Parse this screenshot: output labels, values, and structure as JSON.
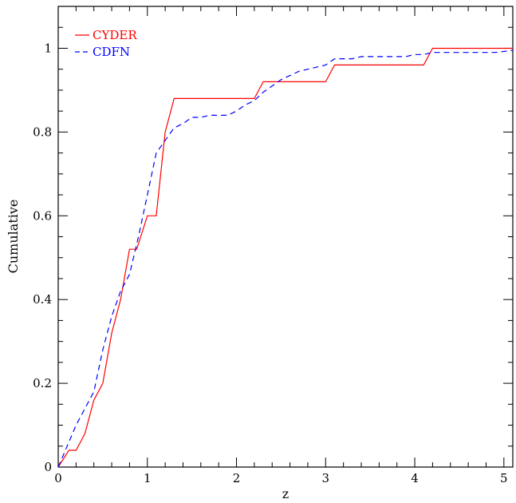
{
  "chart_data": {
    "type": "line",
    "title": "",
    "xlabel": "z",
    "ylabel": "Cumulative",
    "xlim": [
      0,
      5.1
    ],
    "ylim": [
      0,
      1.1
    ],
    "xticks": [
      0,
      1,
      2,
      3,
      4,
      5
    ],
    "yticks": [
      0,
      0.2,
      0.4,
      0.6,
      0.8,
      1
    ],
    "xtick_labels": [
      "0",
      "1",
      "2",
      "3",
      "4",
      "5"
    ],
    "ytick_labels": [
      "0",
      "0.2",
      "0.4",
      "0.6",
      "0.8",
      "1"
    ],
    "grid": false,
    "legend_position": "top-left",
    "series": [
      {
        "name": "CYDER",
        "color": "#ff0000",
        "style": "solid",
        "x": [
          0,
          0.12,
          0.2,
          0.3,
          0.4,
          0.5,
          0.6,
          0.7,
          0.8,
          0.88,
          1.0,
          1.1,
          1.2,
          1.3,
          2.2,
          2.3,
          3.0,
          3.1,
          4.1,
          4.2,
          5.1
        ],
        "y": [
          0,
          0.04,
          0.04,
          0.08,
          0.16,
          0.2,
          0.32,
          0.4,
          0.52,
          0.52,
          0.6,
          0.6,
          0.8,
          0.88,
          0.88,
          0.92,
          0.92,
          0.96,
          0.96,
          1.0,
          1.0
        ]
      },
      {
        "name": "CDFN",
        "color": "#0000ff",
        "style": "dashed",
        "x": [
          0,
          0.1,
          0.2,
          0.3,
          0.4,
          0.5,
          0.6,
          0.7,
          0.8,
          0.9,
          1.0,
          1.1,
          1.2,
          1.3,
          1.4,
          1.5,
          1.6,
          1.7,
          1.8,
          1.9,
          2.0,
          2.1,
          2.2,
          2.3,
          2.4,
          2.5,
          2.6,
          2.7,
          2.8,
          2.9,
          3.0,
          3.1,
          3.2,
          3.3,
          3.4,
          3.5,
          3.6,
          3.7,
          3.8,
          3.9,
          4.0,
          4.1,
          4.2,
          4.3,
          4.5,
          4.7,
          4.9,
          5.1
        ],
        "y": [
          0,
          0.05,
          0.1,
          0.14,
          0.18,
          0.28,
          0.36,
          0.42,
          0.46,
          0.55,
          0.65,
          0.75,
          0.78,
          0.81,
          0.82,
          0.835,
          0.835,
          0.84,
          0.84,
          0.84,
          0.85,
          0.865,
          0.875,
          0.895,
          0.91,
          0.925,
          0.935,
          0.945,
          0.95,
          0.955,
          0.96,
          0.975,
          0.975,
          0.975,
          0.98,
          0.98,
          0.98,
          0.98,
          0.98,
          0.98,
          0.985,
          0.985,
          0.99,
          0.99,
          0.99,
          0.99,
          0.99,
          0.995
        ]
      }
    ]
  }
}
